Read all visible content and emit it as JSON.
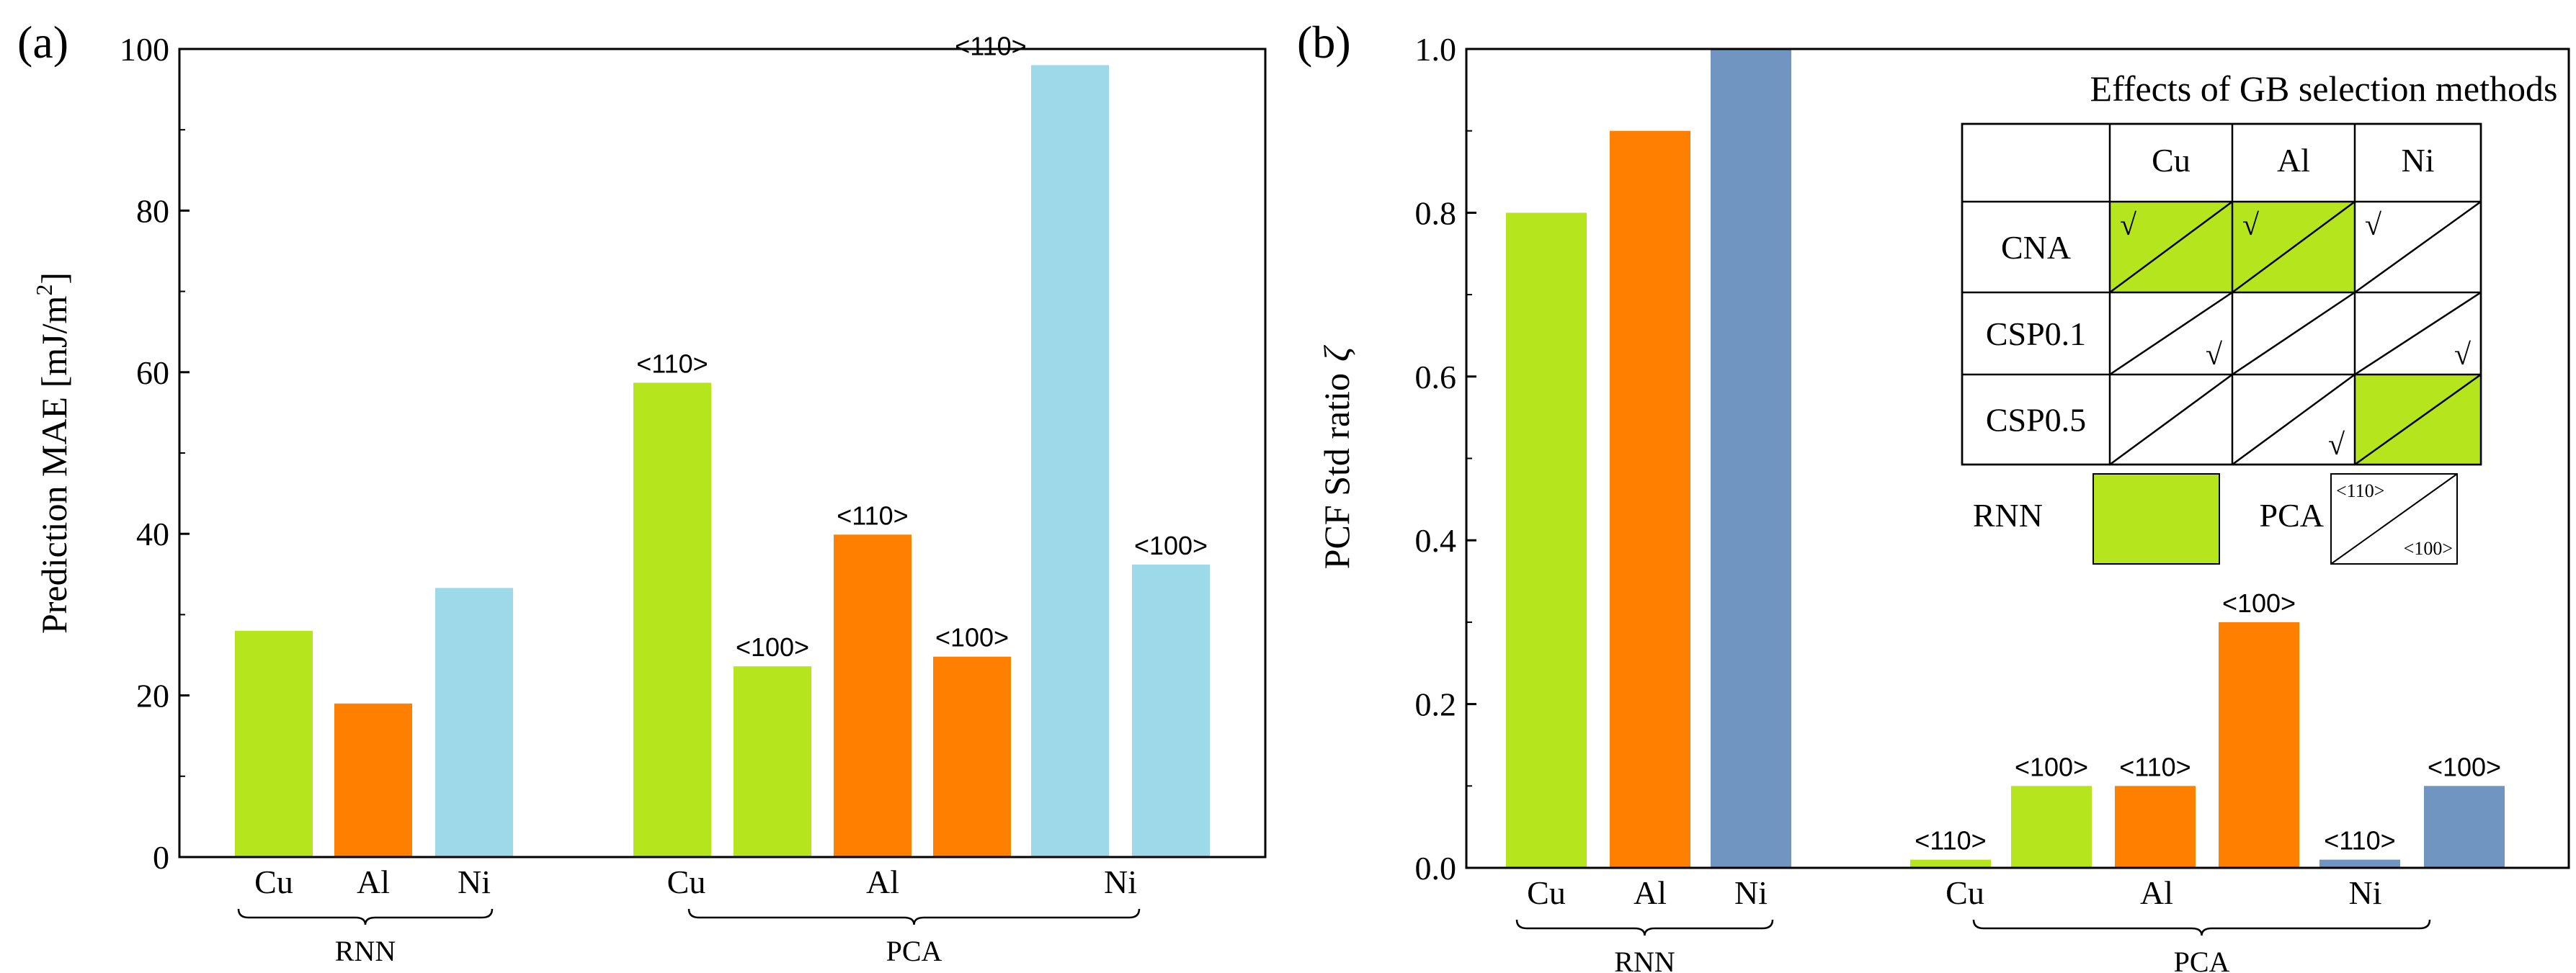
{
  "colors": {
    "Cu": "#b5e61d",
    "Al": "#ff7f00",
    "NiA": "#9cdaea",
    "NiB": "#7095c0",
    "axis": "#000000"
  },
  "chart_data": [
    {
      "type": "bar",
      "panel_label": "(a)",
      "ylabel": "Prediction MAE [mJ/m",
      "ylabel_sup": "2",
      "ylabel_close": "]",
      "ylim": [
        0,
        100
      ],
      "yticks": [
        "0",
        "20",
        "40",
        "60",
        "80",
        "100"
      ],
      "series": [
        {
          "name": "Cu",
          "method": "RNN",
          "dir": "",
          "value": 28,
          "el": "Cu",
          "label": "Cu"
        },
        {
          "name": "Al",
          "method": "RNN",
          "dir": "",
          "value": 19,
          "el": "Al",
          "label": "Al"
        },
        {
          "name": "Ni",
          "method": "RNN",
          "dir": "",
          "value": 33.3,
          "el": "NiA",
          "label": "Ni"
        },
        {
          "name": "Cu <110>",
          "method": "PCA",
          "dir": "<110>",
          "value": 58.7,
          "el": "Cu",
          "label": ""
        },
        {
          "name": "Cu <100>",
          "method": "PCA",
          "dir": "<100>",
          "value": 23.6,
          "el": "Cu",
          "label": ""
        },
        {
          "name": "Al <110>",
          "method": "PCA",
          "dir": "<110>",
          "value": 39.9,
          "el": "Al",
          "label": ""
        },
        {
          "name": "Al <100>",
          "method": "PCA",
          "dir": "<100>",
          "value": 24.8,
          "el": "Al",
          "label": ""
        },
        {
          "name": "Ni <110>",
          "method": "PCA",
          "dir": "<110>",
          "value": 98,
          "el": "NiA",
          "label": ""
        },
        {
          "name": "Ni <100>",
          "method": "PCA",
          "dir": "<100>",
          "value": 36.2,
          "el": "NiA",
          "label": ""
        }
      ],
      "pca_elements": [
        "Cu",
        "Al",
        "Ni"
      ],
      "groups": [
        "RNN",
        "PCA"
      ]
    },
    {
      "type": "bar",
      "panel_label": "(b)",
      "ylabel": "PCF Std ratio",
      "ylabel_symbol": "ζ",
      "ylim": [
        0,
        1
      ],
      "yticks": [
        "0.0",
        "0.2",
        "0.4",
        "0.6",
        "0.8",
        "1.0"
      ],
      "series": [
        {
          "name": "Cu",
          "method": "RNN",
          "dir": "",
          "value": 0.8,
          "el": "Cu",
          "label": "Cu"
        },
        {
          "name": "Al",
          "method": "RNN",
          "dir": "",
          "value": 0.9,
          "el": "Al",
          "label": "Al"
        },
        {
          "name": "Ni",
          "method": "RNN",
          "dir": "",
          "value": 1.0,
          "el": "NiB",
          "label": "Ni"
        },
        {
          "name": "Cu <110>",
          "method": "PCA",
          "dir": "<110>",
          "value": 0.01,
          "el": "Cu",
          "label": ""
        },
        {
          "name": "Cu <100>",
          "method": "PCA",
          "dir": "<100>",
          "value": 0.1,
          "el": "Cu",
          "label": ""
        },
        {
          "name": "Al <110>",
          "method": "PCA",
          "dir": "<110>",
          "value": 0.1,
          "el": "Al",
          "label": ""
        },
        {
          "name": "Al <100>",
          "method": "PCA",
          "dir": "<100>",
          "value": 0.3,
          "el": "Al",
          "label": ""
        },
        {
          "name": "Ni <110>",
          "method": "PCA",
          "dir": "<110>",
          "value": 0.01,
          "el": "NiB",
          "label": ""
        },
        {
          "name": "Ni <100>",
          "method": "PCA",
          "dir": "<100>",
          "value": 0.1,
          "el": "NiB",
          "label": ""
        }
      ],
      "pca_elements": [
        "Cu",
        "Al",
        "Ni"
      ],
      "groups": [
        "RNN",
        "PCA"
      ]
    }
  ],
  "inset": {
    "title": "Effects of GB selection methods",
    "columns": [
      "Cu",
      "Al",
      "Ni"
    ],
    "rows": [
      {
        "name": "CNA",
        "cells": [
          {
            "fill": "RNN",
            "check": "<110>"
          },
          {
            "fill": "RNN",
            "check": "<110>"
          },
          {
            "fill": "",
            "check": "<110>"
          }
        ]
      },
      {
        "name": "CSP0.1",
        "cells": [
          {
            "fill": "",
            "check": "<100>"
          },
          {
            "fill": "",
            "check": ""
          },
          {
            "fill": "",
            "check": "<100>"
          }
        ]
      },
      {
        "name": "CSP0.5",
        "cells": [
          {
            "fill": "",
            "check": ""
          },
          {
            "fill": "",
            "check": "<100>"
          },
          {
            "fill": "RNN",
            "check": ""
          }
        ]
      }
    ],
    "check_mark": "√",
    "legend": {
      "rnn_label": "RNN",
      "pca_label": "PCA",
      "pca_upper": "<110>",
      "pca_lower": "<100>"
    }
  }
}
